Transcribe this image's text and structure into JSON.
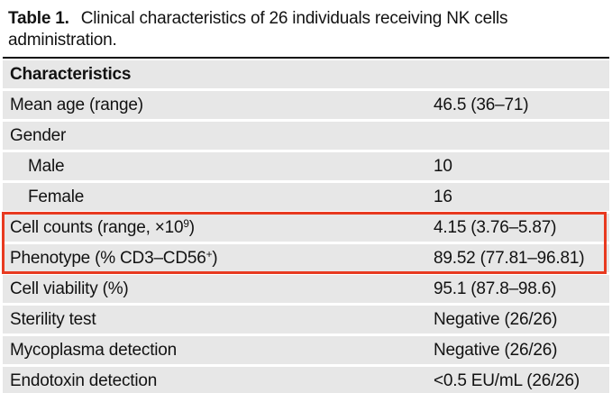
{
  "title": {
    "label": "Table 1.",
    "line1": "Clinical characteristics of 26 individuals receiving NK cells",
    "line2": "administration."
  },
  "colors": {
    "row_bg": "#e7e7e7",
    "highlight": "#e83a20",
    "rule": "#0d0d0d",
    "text": "#121212"
  },
  "table": {
    "header": "Characteristics",
    "rows": [
      {
        "label": [
          {
            "t": "Mean age (range)"
          }
        ],
        "value": "46.5 (36–71)",
        "indent": false,
        "highlight": false
      },
      {
        "label": [
          {
            "t": "Gender"
          }
        ],
        "value": "",
        "indent": false,
        "highlight": false
      },
      {
        "label": [
          {
            "t": "Male"
          }
        ],
        "value": "10",
        "indent": true,
        "highlight": false
      },
      {
        "label": [
          {
            "t": "Female"
          }
        ],
        "value": "16",
        "indent": true,
        "highlight": false
      },
      {
        "label": [
          {
            "t": "Cell counts (range, ×10"
          },
          {
            "t": "9",
            "sup": true
          },
          {
            "t": ")"
          }
        ],
        "value": "4.15 (3.76–5.87)",
        "indent": false,
        "highlight": true
      },
      {
        "label": [
          {
            "t": "Phenotype (% CD3–CD56"
          },
          {
            "t": "+",
            "sup": true
          },
          {
            "t": ")"
          }
        ],
        "value": "89.52 (77.81–96.81)",
        "indent": false,
        "highlight": true
      },
      {
        "label": [
          {
            "t": "Cell viability (%)"
          }
        ],
        "value": "95.1 (87.8–98.6)",
        "indent": false,
        "highlight": false
      },
      {
        "label": [
          {
            "t": "Sterility test"
          }
        ],
        "value": "Negative (26/26)",
        "indent": false,
        "highlight": false
      },
      {
        "label": [
          {
            "t": "Mycoplasma detection"
          }
        ],
        "value": "Negative (26/26)",
        "indent": false,
        "highlight": false
      },
      {
        "label": [
          {
            "t": "Endotoxin detection"
          }
        ],
        "value": "<0.5 EU/mL (26/26)",
        "indent": false,
        "highlight": false
      }
    ]
  }
}
